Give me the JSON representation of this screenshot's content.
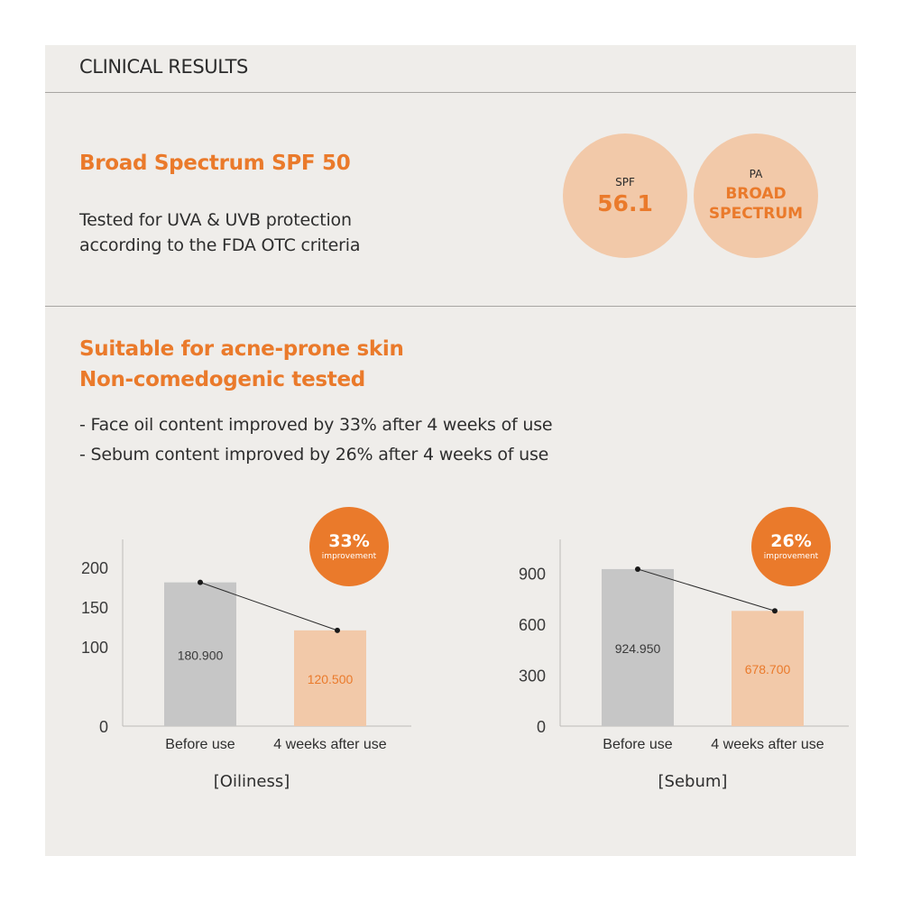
{
  "header": {
    "title": "CLINICAL RESULTS"
  },
  "spf_section": {
    "title": "Broad Spectrum SPF 50",
    "desc_lines": [
      "Tested for UVA & UVB protection",
      "according to the FDA OTC criteria"
    ],
    "spf_circle": {
      "label": "SPF",
      "value": "56.1"
    },
    "pa_circle": {
      "label": "PA",
      "line1": "BROAD",
      "line2": "SPECTRUM"
    }
  },
  "acne_section": {
    "title_line1": "Suitable for acne-prone skin",
    "title_line2": "Non-comedogenic tested",
    "bullets": [
      "- Face oil content improved by 33% after 4 weeks of use",
      "- Sebum content improved by 26% after 4 weeks of use"
    ]
  },
  "colors": {
    "accent": "#ea7a2b",
    "peach": "#f2c9a9",
    "gray_bar": "#c6c6c6",
    "panel": "#efedea"
  },
  "chart_data": [
    {
      "type": "bar",
      "title": "[Oiliness]",
      "categories": [
        "Before use",
        "4 weeks after use"
      ],
      "values": [
        180.9,
        120.5
      ],
      "value_labels": [
        "180.900",
        "120.500"
      ],
      "yticks": [
        0,
        50,
        100,
        150,
        200
      ],
      "ytick_labels": [
        "0",
        "",
        "100",
        "150",
        "200"
      ],
      "ylim": [
        0,
        235
      ],
      "badge": {
        "pct": "33%",
        "text": "improvement"
      }
    },
    {
      "type": "bar",
      "title": "[Sebum]",
      "categories": [
        "Before use",
        "4 weeks after use"
      ],
      "values": [
        924.95,
        678.7
      ],
      "value_labels": [
        "924.950",
        "678.700"
      ],
      "yticks": [
        0,
        300,
        600,
        900
      ],
      "ytick_labels": [
        "0",
        "300",
        "600",
        "900"
      ],
      "ylim": [
        0,
        1100
      ],
      "badge": {
        "pct": "26%",
        "text": "improvement"
      }
    }
  ]
}
